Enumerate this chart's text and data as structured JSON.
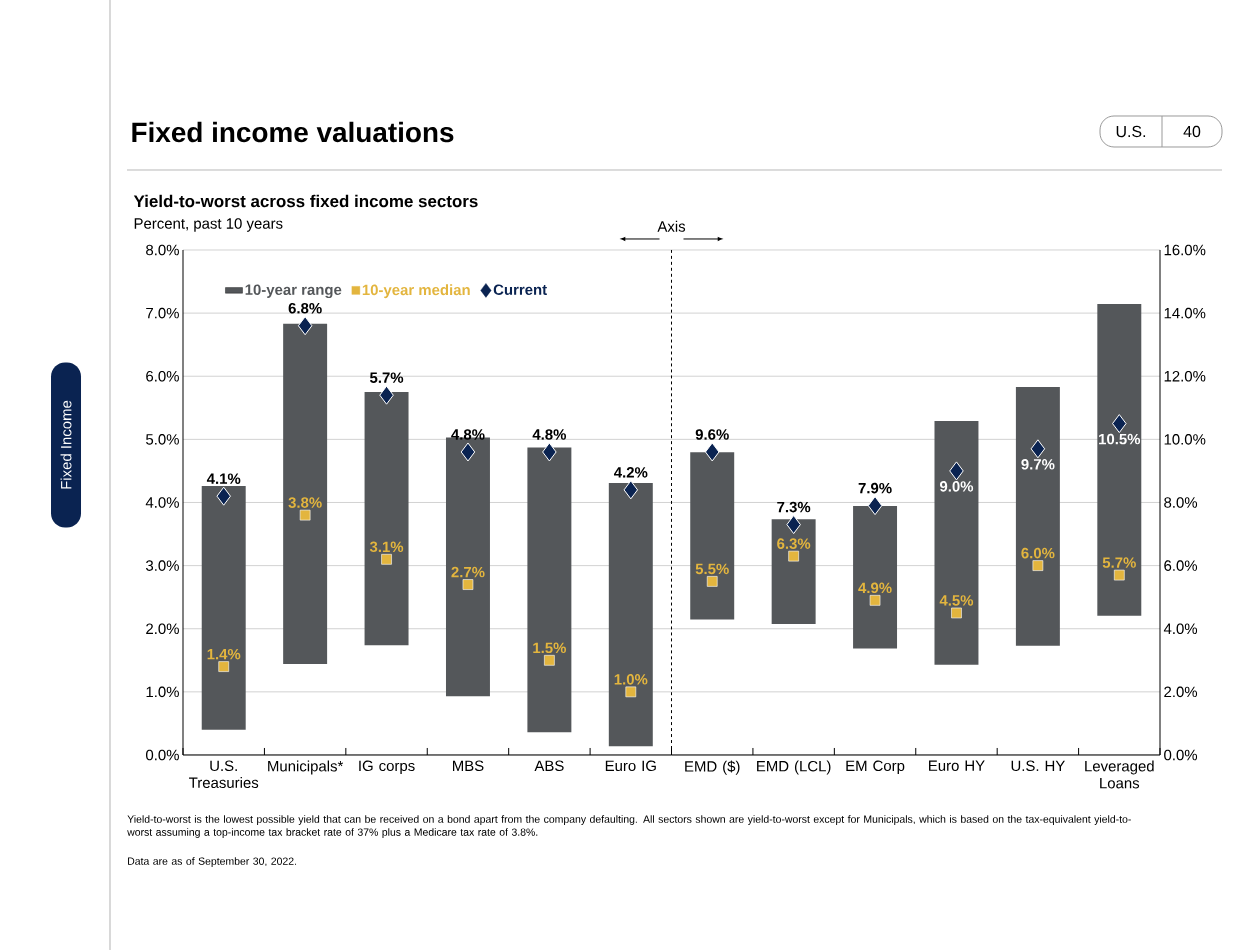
{
  "chart_data": [
    {
      "type": "bar",
      "title": "Fixed income valuations",
      "subtitle": "Yield-to-worst across fixed income sectors",
      "ylabel": "Percent, past 10 years",
      "categories": [
        "U.S. Treasuries",
        "Municipals*",
        "IG corps",
        "MBS",
        "ABS",
        "Euro IG"
      ],
      "series": [
        {
          "name": "10-year range",
          "color": "#54575a",
          "base": [
            0.4,
            1.44,
            1.74,
            0.93,
            0.36,
            0.14
          ],
          "values": [
            3.86,
            5.39,
            4.01,
            4.1,
            4.51,
            4.17
          ]
        },
        {
          "name": "10-year median",
          "type": "scatter",
          "marker": "square",
          "color": "#e3b53e",
          "values": [
            1.4,
            3.8,
            3.1,
            2.7,
            1.5,
            1.0
          ],
          "value_labels": [
            "1.4%",
            "3.8%",
            "3.1%",
            "2.7%",
            "1.5%",
            "1.0%"
          ]
        },
        {
          "name": "Current",
          "type": "scatter",
          "marker": "diamond",
          "color": "#0a2351",
          "values": [
            4.1,
            6.8,
            5.7,
            4.8,
            4.8,
            4.2
          ],
          "value_labels": [
            "4.1%",
            "6.8%",
            "5.7%",
            "4.8%",
            "4.8%",
            "4.2%"
          ]
        }
      ],
      "ylim": [
        0,
        8
      ],
      "yticks": [
        {
          "value": 0,
          "label": "0.0%"
        },
        {
          "value": 1,
          "label": "1.0%"
        },
        {
          "value": 2,
          "label": "2.0%"
        },
        {
          "value": 3,
          "label": "3.0%"
        },
        {
          "value": 4,
          "label": "4.0%"
        },
        {
          "value": 5,
          "label": "5.0%"
        },
        {
          "value": 6,
          "label": "6.0%"
        },
        {
          "value": 7,
          "label": "7.0%"
        },
        {
          "value": 8,
          "label": "8.0%"
        }
      ],
      "grid": "y",
      "legend": "top left",
      "annotations": [
        "Fixed Income",
        "U.S.",
        "40",
        "Yield-to-worst is the lowest possible yield that can be received on a bond apart from the company defaulting. All sectors shown are yield-to-worst except for Municipals, which is based on the tax-equivalent yield-to-worst assuming a top-income tax bracket rate of 37% plus a Medicare tax rate of 3.8%.",
        "Data are as of September 30, 2022."
      ]
    },
    {
      "type": "bar",
      "categories": [
        "EMD ($)",
        "EMD (LCL)",
        "EM Corp",
        "Euro HY",
        "U.S. HY",
        "Leveraged Loans"
      ],
      "series": [
        {
          "color": "#54575a",
          "base": [
            4.29,
            4.15,
            3.37,
            2.86,
            3.46,
            4.41
          ],
          "values": [
            5.3,
            3.32,
            4.52,
            7.72,
            8.2,
            9.88
          ]
        },
        {
          "type": "scatter",
          "marker": "square",
          "color": "#e3b53e",
          "values": [
            5.5,
            6.3,
            4.9,
            4.5,
            6.0,
            5.7
          ],
          "value_labels": [
            "5.5%",
            "6.3%",
            "4.9%",
            "4.5%",
            "6.0%",
            "5.7%"
          ]
        },
        {
          "type": "scatter",
          "marker": "diamond",
          "color": "#0a2351",
          "values": [
            9.6,
            7.3,
            7.9,
            9.0,
            9.7,
            10.5
          ],
          "value_labels": [
            "9.6%",
            "7.3%",
            "7.9%",
            "9.0%",
            "9.7%",
            "10.5%"
          ]
        }
      ],
      "ylim": [
        0,
        16
      ],
      "yticks": [
        {
          "value": 0,
          "label": "0.0%"
        },
        {
          "value": 2,
          "label": "2.0%"
        },
        {
          "value": 4,
          "label": "4.0%"
        },
        {
          "value": 6,
          "label": "6.0%"
        },
        {
          "value": 8,
          "label": "8.0%"
        },
        {
          "value": 10,
          "label": "10.0%"
        },
        {
          "value": 12,
          "label": "12.0%"
        },
        {
          "value": 14,
          "label": "14.0%"
        },
        {
          "value": 16,
          "label": "16.0%"
        }
      ],
      "grid": "y",
      "annotations": [
        "Axis"
      ]
    }
  ]
}
